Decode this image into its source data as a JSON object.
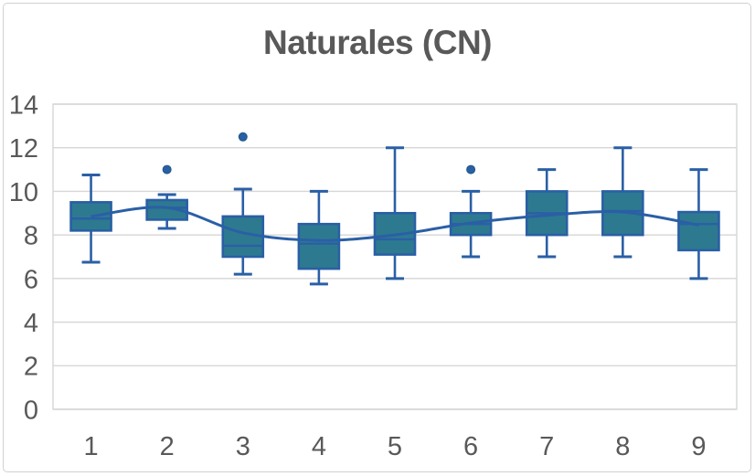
{
  "chart": {
    "title": "Naturales (CN)"
  },
  "chart_data": {
    "type": "boxplot",
    "title": "Naturales (CN)",
    "categories": [
      "1",
      "2",
      "3",
      "4",
      "5",
      "6",
      "7",
      "8",
      "9"
    ],
    "y_ticks": [
      0,
      2,
      4,
      6,
      8,
      10,
      12,
      14
    ],
    "ylim": [
      0,
      14
    ],
    "xlabel": "",
    "ylabel": "",
    "grid": "horizontal",
    "legend": "none",
    "colors": {
      "box_fill": "#2d7a90",
      "line": "#2a5fa5",
      "grid": "#d6d6d6",
      "text": "#595959",
      "frame": "#d2d0d0"
    },
    "boxes": [
      {
        "category": "1",
        "min": 6.75,
        "q1": 8.2,
        "median": 8.75,
        "q3": 9.5,
        "max": 10.75,
        "mean": 8.85,
        "outliers": []
      },
      {
        "category": "2",
        "min": 8.3,
        "q1": 8.7,
        "median": 9.25,
        "q3": 9.6,
        "max": 9.85,
        "mean": 9.25,
        "outliers": [
          11
        ]
      },
      {
        "category": "3",
        "min": 6.2,
        "q1": 7.0,
        "median": 7.5,
        "q3": 8.85,
        "max": 10.1,
        "mean": 8.1,
        "outliers": [
          12.5
        ]
      },
      {
        "category": "4",
        "min": 5.75,
        "q1": 6.45,
        "median": 7.6,
        "q3": 8.5,
        "max": 10.0,
        "mean": 7.75,
        "outliers": []
      },
      {
        "category": "5",
        "min": 6.0,
        "q1": 7.1,
        "median": 7.8,
        "q3": 9.0,
        "max": 12.0,
        "mean": 8.0,
        "outliers": []
      },
      {
        "category": "6",
        "min": 7.0,
        "q1": 8.0,
        "median": 8.5,
        "q3": 9.0,
        "max": 10.0,
        "mean": 8.55,
        "outliers": [
          11
        ]
      },
      {
        "category": "7",
        "min": 7.0,
        "q1": 8.0,
        "median": 9.0,
        "q3": 10.0,
        "max": 11.0,
        "mean": 8.9,
        "outliers": []
      },
      {
        "category": "8",
        "min": 7.0,
        "q1": 8.0,
        "median": 9.1,
        "q3": 10.0,
        "max": 12.0,
        "mean": 9.05,
        "outliers": []
      },
      {
        "category": "9",
        "min": 6.0,
        "q1": 7.3,
        "median": 8.5,
        "q3": 9.05,
        "max": 11.0,
        "mean": 8.45,
        "outliers": []
      }
    ],
    "mean_line": [
      8.85,
      9.25,
      8.1,
      7.75,
      8.0,
      8.55,
      8.9,
      9.05,
      8.45
    ]
  }
}
